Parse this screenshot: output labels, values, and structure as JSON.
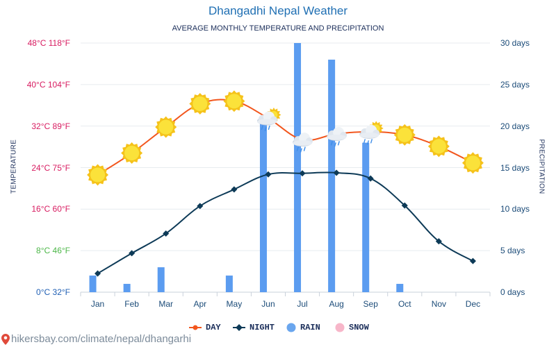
{
  "header": {
    "title": "Dhangadhi Nepal Weather",
    "subtitle": "AVERAGE MONTHLY TEMPERATURE AND PRECIPITATION"
  },
  "footer": {
    "source": "hikersbay.com/climate/nepal/dhangarhi",
    "pin_icon": "location-pin-icon"
  },
  "chart_data": {
    "type": "line",
    "title": "Dhangadhi Nepal Weather",
    "subtitle": "AVERAGE MONTHLY TEMPERATURE AND PRECIPITATION",
    "xlabel": "",
    "ylabel": "TEMPERATURE",
    "y2label": "PRECIPITATION",
    "categories": [
      "Jan",
      "Feb",
      "Mar",
      "Apr",
      "May",
      "Jun",
      "Jul",
      "Aug",
      "Sep",
      "Oct",
      "Nov",
      "Dec"
    ],
    "ylim": [
      0,
      48
    ],
    "y2lim": [
      0,
      30
    ],
    "left_ticks": [
      {
        "value": 0,
        "label": "0°C 32°F",
        "color": "#1f5fb4"
      },
      {
        "value": 8,
        "label": "8°C 46°F",
        "color": "#4cb748"
      },
      {
        "value": 16,
        "label": "16°C 60°F",
        "color": "#d81b60"
      },
      {
        "value": 24,
        "label": "24°C 75°F",
        "color": "#d81b60"
      },
      {
        "value": 32,
        "label": "32°C 89°F",
        "color": "#d81b60"
      },
      {
        "value": 40,
        "label": "40°C 104°F",
        "color": "#d81b60"
      },
      {
        "value": 48,
        "label": "48°C 118°F",
        "color": "#d81b60"
      }
    ],
    "right_ticks": [
      {
        "value": 0,
        "label": "0 days"
      },
      {
        "value": 5,
        "label": "5 days"
      },
      {
        "value": 10,
        "label": "10 days"
      },
      {
        "value": 15,
        "label": "15 days"
      },
      {
        "value": 20,
        "label": "20 days"
      },
      {
        "value": 25,
        "label": "25 days"
      },
      {
        "value": 30,
        "label": "30 days"
      }
    ],
    "series": [
      {
        "name": "DAY",
        "type": "line",
        "axis": "left",
        "color": "#f2561d",
        "values": [
          22.6,
          26.8,
          31.8,
          36.3,
          36.8,
          33.5,
          29.4,
          30.5,
          30.9,
          30.3,
          28.1,
          24.9
        ]
      },
      {
        "name": "NIGHT",
        "type": "line",
        "axis": "left",
        "color": "#0d3a57",
        "values": [
          3.6,
          7.5,
          11.3,
          16.6,
          19.8,
          22.7,
          22.9,
          23.0,
          21.9,
          16.7,
          9.8,
          6.0
        ]
      },
      {
        "name": "RAIN",
        "type": "bar",
        "axis": "right",
        "color": "#5b9cf0",
        "values": [
          2,
          1,
          3,
          0,
          2,
          21,
          30,
          28,
          18,
          1,
          0,
          0
        ]
      },
      {
        "name": "SNOW",
        "type": "bar",
        "axis": "right",
        "color": "#f7b6c9",
        "values": [
          0,
          0,
          0,
          0,
          0,
          0,
          0,
          0,
          0,
          0,
          0,
          0
        ]
      }
    ],
    "weather_icons": [
      "sun",
      "sun",
      "sun",
      "sun",
      "sun",
      "sun-cloud-rain",
      "cloud-rain",
      "cloud-rain",
      "sun-cloud-rain",
      "sun",
      "sun",
      "sun"
    ],
    "grid": true,
    "legend_position": "bottom-center"
  }
}
